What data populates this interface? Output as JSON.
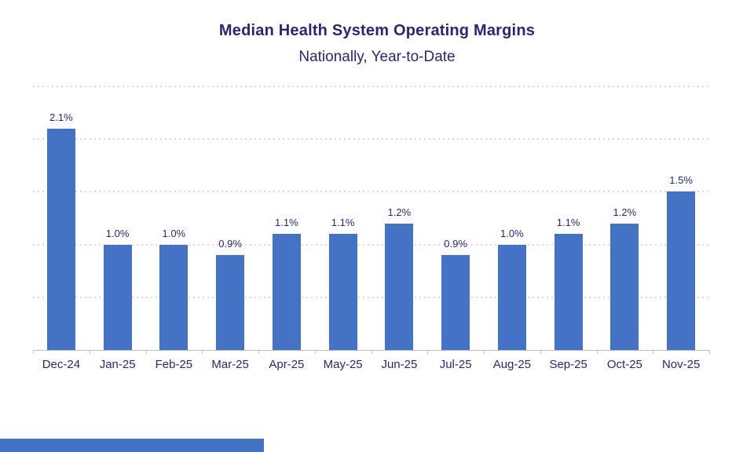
{
  "header": {
    "title": "Median Health System Operating Margins",
    "subtitle": "Nationally, Year-to-Date"
  },
  "chart_data": {
    "type": "bar",
    "title": "Median Health System Operating Margins",
    "subtitle": "Nationally, Year-to-Date",
    "categories": [
      "Dec-24",
      "Jan-25",
      "Feb-25",
      "Mar-25",
      "Apr-25",
      "May-25",
      "Jun-25",
      "Jul-25",
      "Aug-25",
      "Sep-25",
      "Oct-25",
      "Nov-25"
    ],
    "values": [
      2.1,
      1.0,
      1.0,
      0.9,
      1.1,
      1.1,
      1.2,
      0.9,
      1.0,
      1.1,
      1.2,
      1.5
    ],
    "data_labels": [
      "2.1%",
      "1.0%",
      "1.0%",
      "0.9%",
      "1.1%",
      "1.1%",
      "1.2%",
      "0.9%",
      "1.0%",
      "1.1%",
      "1.2%",
      "1.5%"
    ],
    "xlabel": "",
    "ylabel": "",
    "ylim": [
      0,
      2.5
    ],
    "gridline_step": 0.5,
    "grid": "horizontal-dotted",
    "legend_position": "none",
    "y_axis_labels_visible": false,
    "colors": {
      "bar": "#4472C4",
      "text": "#2A2673",
      "gridline": "#D9D9D9",
      "axis": "#BFBFBF",
      "background": "#FFFFFF"
    }
  },
  "footer": {
    "accent_bar_color": "#4472C4"
  }
}
